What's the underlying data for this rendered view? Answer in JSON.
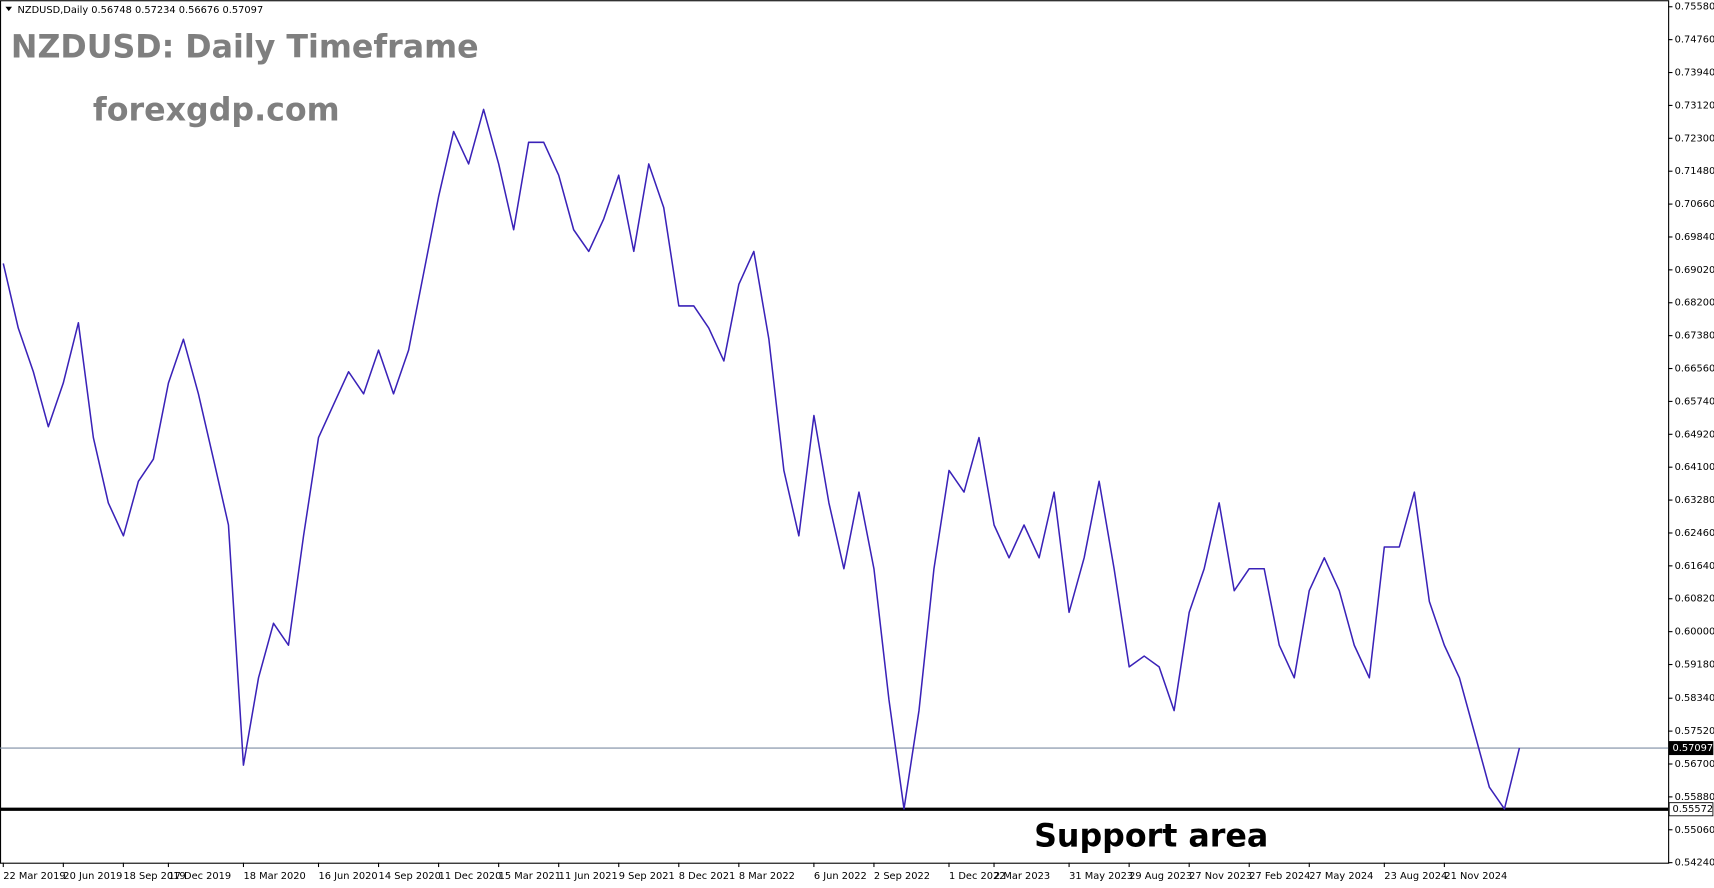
{
  "chart_data": {
    "type": "line",
    "header": "NZDUSD,Daily  0.56748 0.57234 0.56676 0.57097",
    "title": "NZDUSD: Daily Timeframe",
    "subtitle": "forexgdp.com",
    "annotation": "Support area",
    "categories": [
      "22 Mar 2019",
      null,
      null,
      null,
      "20 Jun 2019",
      null,
      null,
      null,
      "18 Sep 2019",
      null,
      null,
      "17 Dec 2019",
      null,
      null,
      null,
      null,
      "18 Mar 2020",
      null,
      null,
      null,
      null,
      "16 Jun 2020",
      null,
      null,
      null,
      "14 Sep 2020",
      null,
      null,
      null,
      "11 Dec 2020",
      null,
      null,
      null,
      "15 Mar 2021",
      null,
      null,
      null,
      "11 Jun 2021",
      null,
      null,
      null,
      "9 Sep 2021",
      null,
      null,
      null,
      "8 Dec 2021",
      null,
      null,
      null,
      "8 Mar 2022",
      null,
      null,
      null,
      null,
      "6 Jun 2022",
      null,
      null,
      null,
      "2 Sep 2022",
      null,
      null,
      null,
      null,
      "1 Dec 2022",
      null,
      null,
      "2 Mar 2023",
      null,
      null,
      null,
      null,
      "31 May 2023",
      null,
      null,
      null,
      "29 Aug 2023",
      null,
      null,
      null,
      "27 Nov 2023",
      null,
      null,
      null,
      "27 Feb 2024",
      null,
      null,
      null,
      "27 May 2024",
      null,
      null,
      null,
      null,
      "23 Aug 2024",
      null,
      null,
      null,
      "21 Nov 2024",
      null,
      null,
      null,
      null,
      null
    ],
    "values": [
      0.6918,
      0.6757,
      0.6648,
      0.6511,
      0.662,
      0.677,
      0.6484,
      0.6321,
      0.6239,
      0.6375,
      0.643,
      0.662,
      0.6729,
      0.6593,
      0.643,
      0.6266,
      0.5667,
      0.5885,
      0.6021,
      0.5966,
      0.6239,
      0.6484,
      0.6566,
      0.6648,
      0.6593,
      0.6702,
      0.6593,
      0.6702,
      0.6893,
      0.7084,
      0.7247,
      0.7166,
      0.7302,
      0.7166,
      0.7002,
      0.722,
      0.722,
      0.7138,
      0.7002,
      0.6948,
      0.7029,
      0.7138,
      0.6948,
      0.7166,
      0.7057,
      0.6812,
      0.6812,
      0.6757,
      0.6675,
      0.6866,
      0.6948,
      0.6729,
      0.6402,
      0.6239,
      0.6539,
      0.6321,
      0.6157,
      0.6348,
      0.6157,
      0.5831,
      0.5558,
      0.5803,
      0.6157,
      0.6402,
      0.6348,
      0.6484,
      0.6266,
      0.6184,
      0.6266,
      0.6184,
      0.6348,
      0.6048,
      0.6184,
      0.6375,
      0.6157,
      0.5912,
      0.5939,
      0.5912,
      0.5803,
      0.6048,
      0.6157,
      0.6321,
      0.6102,
      0.6157,
      0.6157,
      0.5966,
      0.5885,
      0.6102,
      0.6184,
      0.6102,
      0.5966,
      0.5885,
      0.6211,
      0.6211,
      0.6348,
      0.6075,
      0.5966,
      0.5885,
      0.5749,
      0.5612,
      0.5558,
      0.571
    ],
    "color": "#3a22b8",
    "ylim": [
      0.5424,
      0.7558
    ],
    "yticks": [
      {
        "value": 0.7558,
        "label": "0.75580"
      },
      {
        "value": 0.7476,
        "label": "0.74760"
      },
      {
        "value": 0.7394,
        "label": "0.73940"
      },
      {
        "value": 0.7312,
        "label": "0.73120"
      },
      {
        "value": 0.723,
        "label": "0.72300"
      },
      {
        "value": 0.7148,
        "label": "0.71480"
      },
      {
        "value": 0.7066,
        "label": "0.70660"
      },
      {
        "value": 0.6984,
        "label": "0.69840"
      },
      {
        "value": 0.6902,
        "label": "0.69020"
      },
      {
        "value": 0.682,
        "label": "0.68200"
      },
      {
        "value": 0.6738,
        "label": "0.67380"
      },
      {
        "value": 0.6656,
        "label": "0.66560"
      },
      {
        "value": 0.6574,
        "label": "0.65740"
      },
      {
        "value": 0.6492,
        "label": "0.64920"
      },
      {
        "value": 0.641,
        "label": "0.64100"
      },
      {
        "value": 0.6328,
        "label": "0.63280"
      },
      {
        "value": 0.6246,
        "label": "0.62460"
      },
      {
        "value": 0.6164,
        "label": "0.61640"
      },
      {
        "value": 0.6082,
        "label": "0.60820"
      },
      {
        "value": 0.6,
        "label": "0.60000"
      },
      {
        "value": 0.5918,
        "label": "0.59180"
      },
      {
        "value": 0.5834,
        "label": "0.58340"
      },
      {
        "value": 0.5752,
        "label": "0.57520"
      },
      {
        "value": 0.567,
        "label": "0.56700"
      },
      {
        "value": 0.5588,
        "label": "0.55880"
      },
      {
        "value": 0.5506,
        "label": "0.55060"
      },
      {
        "value": 0.5424,
        "label": "0.54240"
      }
    ],
    "hlines": [
      {
        "value": 0.57097,
        "color": "#7d8ea3",
        "width": 1
      },
      {
        "value": 0.55572,
        "color": "#000000",
        "width": 3
      }
    ]
  }
}
